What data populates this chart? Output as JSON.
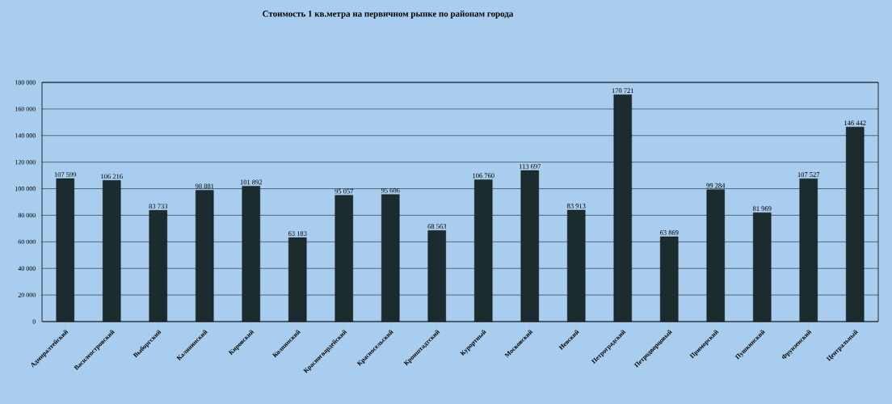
{
  "chart_data": {
    "type": "bar",
    "title": "Стоимость 1 кв.метра на первичном  рынке по районам  города",
    "categories": [
      "Адмиралтейский",
      "Василеостровский",
      "Выборгский",
      "Калининский",
      "Кировский",
      "Колпинский",
      "Красногвардейский",
      "Красносельский",
      "Кронштадтский",
      "Курортный",
      "Московский",
      "Невский",
      "Петроградский",
      "Петродворцовый",
      "Приморский",
      "Пушкинский",
      "Фрунзенский",
      "Центральный"
    ],
    "values": [
      107599,
      106216,
      83733,
      98881,
      101892,
      63183,
      95057,
      95606,
      68563,
      106760,
      113697,
      83913,
      170721,
      63869,
      99284,
      81969,
      107527,
      146442
    ],
    "value_labels": [
      "107 599",
      "106 216",
      "83 733",
      "98 881",
      "101 892",
      "63 183",
      "95 057",
      "95 606",
      "68 563",
      "106 760",
      "113 697",
      "83 913",
      "170 721",
      "63 869",
      "99 284",
      "81 969",
      "107 527",
      "146 442"
    ],
    "color": "#1c2b2e",
    "ylim": [
      0,
      180000
    ],
    "yticks": [
      {
        "value": 0,
        "label": "0"
      },
      {
        "value": 20000,
        "label": "20 000"
      },
      {
        "value": 40000,
        "label": "40 000"
      },
      {
        "value": 60000,
        "label": "60 000"
      },
      {
        "value": 80000,
        "label": "80 000"
      },
      {
        "value": 100000,
        "label": "100 000"
      },
      {
        "value": 120000,
        "label": "120 000"
      },
      {
        "value": 140000,
        "label": "140 000"
      },
      {
        "value": 160000,
        "label": "160 000"
      },
      {
        "value": 180000,
        "label": "180 000"
      }
    ],
    "grid": "y"
  }
}
